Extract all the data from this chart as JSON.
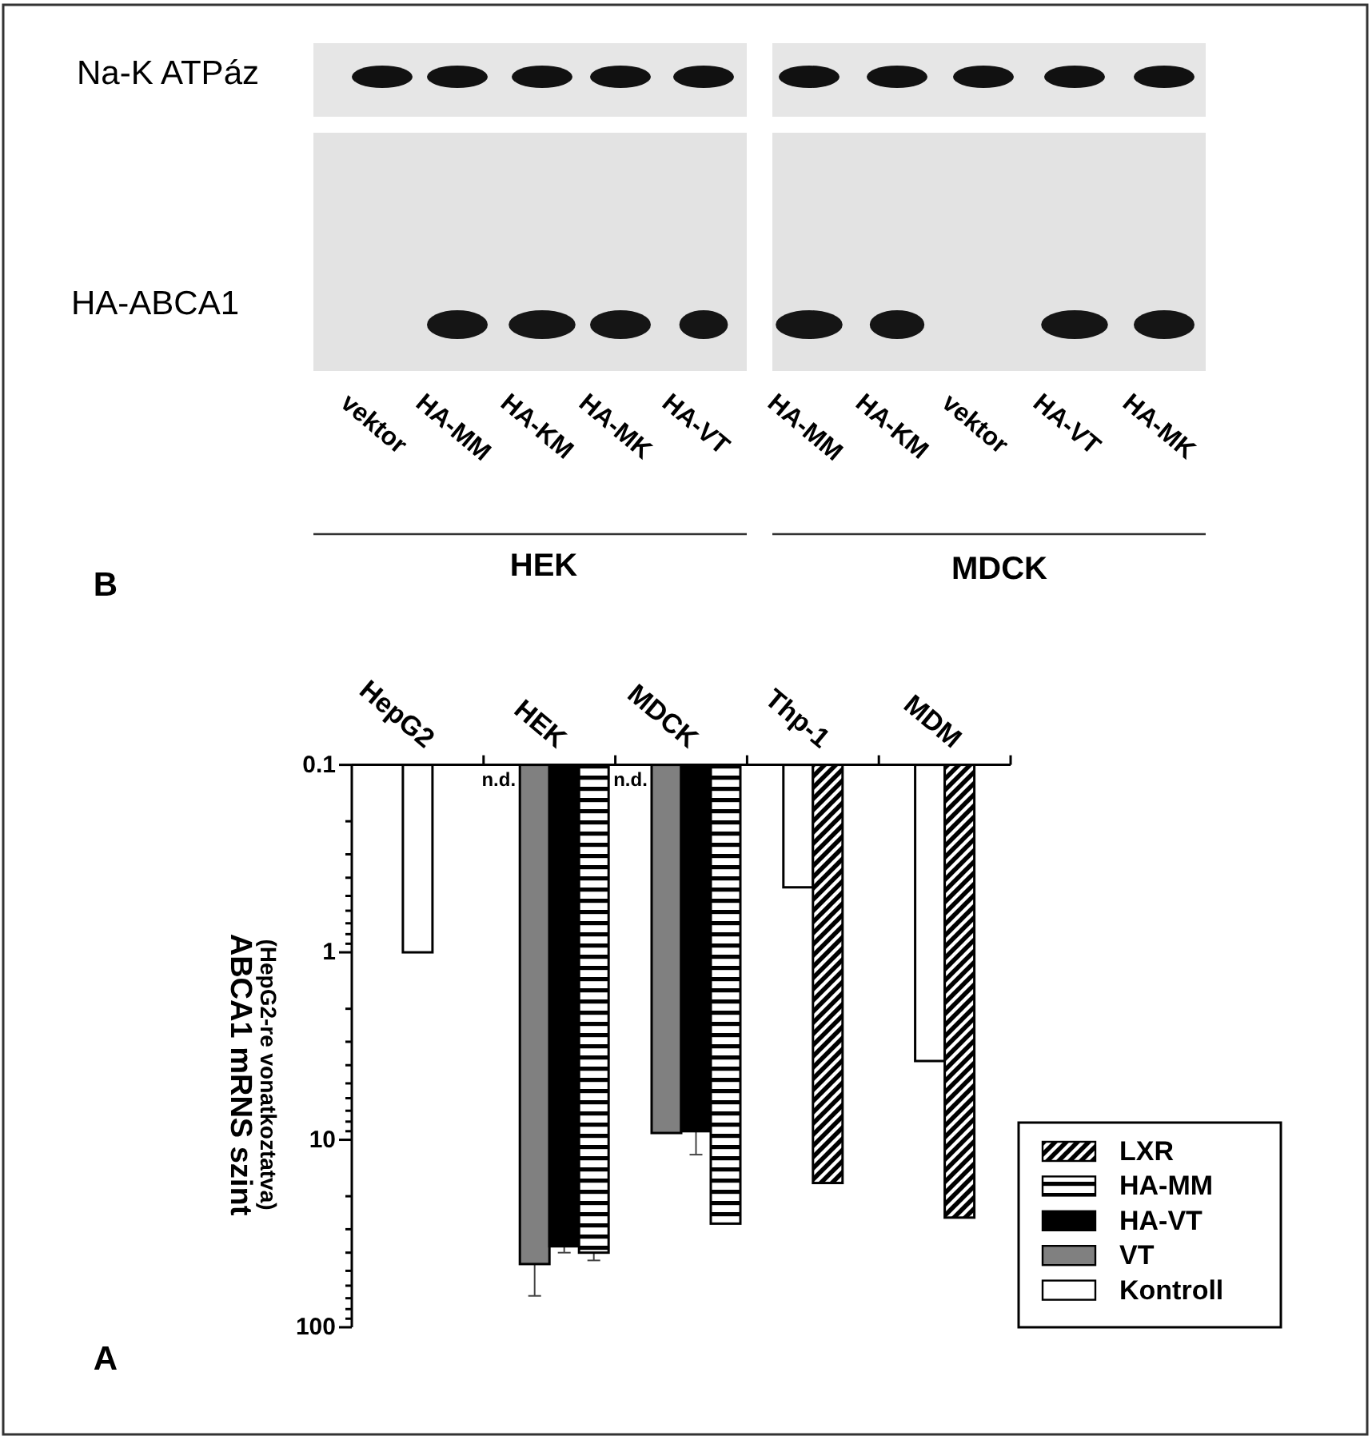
{
  "chart_data": {
    "type": "bar",
    "ylabel": "ABCA1 mRNS szint\n(HepG2-re vonatkoztatva)",
    "categories": [
      "HepG2",
      "HEK",
      "MDCK",
      "Thp-1",
      "MDM"
    ],
    "series": [
      {
        "name": "Kontroll",
        "color": "#ffffff",
        "values": [
          1.0,
          null,
          null,
          0.45,
          3.8
        ],
        "value_labels": [
          null,
          "n.d.",
          "n.d.",
          null,
          null
        ]
      },
      {
        "name": "VT",
        "color": "#808080",
        "values": [
          null,
          46,
          9.2,
          null,
          null
        ],
        "errors": [
          null,
          [
            46,
            68
          ],
          null,
          null,
          null
        ]
      },
      {
        "name": "HA-VT",
        "color": "#000000",
        "values": [
          null,
          37,
          9.0,
          null,
          null
        ],
        "errors": [
          null,
          [
            37,
            40
          ],
          [
            9.0,
            12
          ],
          null,
          null
        ]
      },
      {
        "name": "HA-MM",
        "color": "#000000",
        "values": [
          null,
          40,
          28,
          null,
          null
        ],
        "errors": [
          null,
          [
            40,
            44
          ],
          null,
          null,
          null
        ]
      },
      {
        "name": "LXR",
        "color": "#000000",
        "values": [
          null,
          null,
          null,
          17,
          26
        ]
      }
    ],
    "log": true,
    "ylim": [
      100,
      0.1
    ],
    "yticks": [
      {
        "value": 0.1,
        "label": "0.1"
      },
      {
        "value": 0.2,
        "label": null
      },
      {
        "value": 0.3,
        "label": null
      },
      {
        "value": 0.4,
        "label": null
      },
      {
        "value": 0.5,
        "label": null
      },
      {
        "value": 0.6,
        "label": null
      },
      {
        "value": 0.7,
        "label": null
      },
      {
        "value": 0.8,
        "label": null
      },
      {
        "value": 0.9,
        "label": null
      },
      1,
      {
        "value": 2,
        "label": null
      },
      {
        "value": 3,
        "label": null
      },
      {
        "value": 4,
        "label": null
      },
      {
        "value": 5,
        "label": null
      },
      {
        "value": 6,
        "label": null
      },
      {
        "value": 7,
        "label": null
      },
      {
        "value": 8,
        "label": null
      },
      {
        "value": 9,
        "label": null
      },
      10,
      {
        "value": 20,
        "label": null
      },
      {
        "value": 30,
        "label": null
      },
      {
        "value": 40,
        "label": null
      },
      {
        "value": 50,
        "label": null
      },
      {
        "value": 60,
        "label": null
      },
      {
        "value": 70,
        "label": null
      },
      {
        "value": 80,
        "label": null
      },
      {
        "value": 90,
        "label": null
      },
      100
    ],
    "grid": false,
    "legend": "bottom right",
    "annotations": [
      "Na-K ATPáz",
      "HA-ABCA1",
      "vektor",
      "HA-MM",
      "HA-KM",
      "HA-MK",
      "HA-VT",
      "HA-MM",
      "HA-KM",
      "vektor",
      "HA-VT",
      "HA-MK",
      "HEK",
      "MDCK",
      "B",
      "A"
    ]
  }
}
